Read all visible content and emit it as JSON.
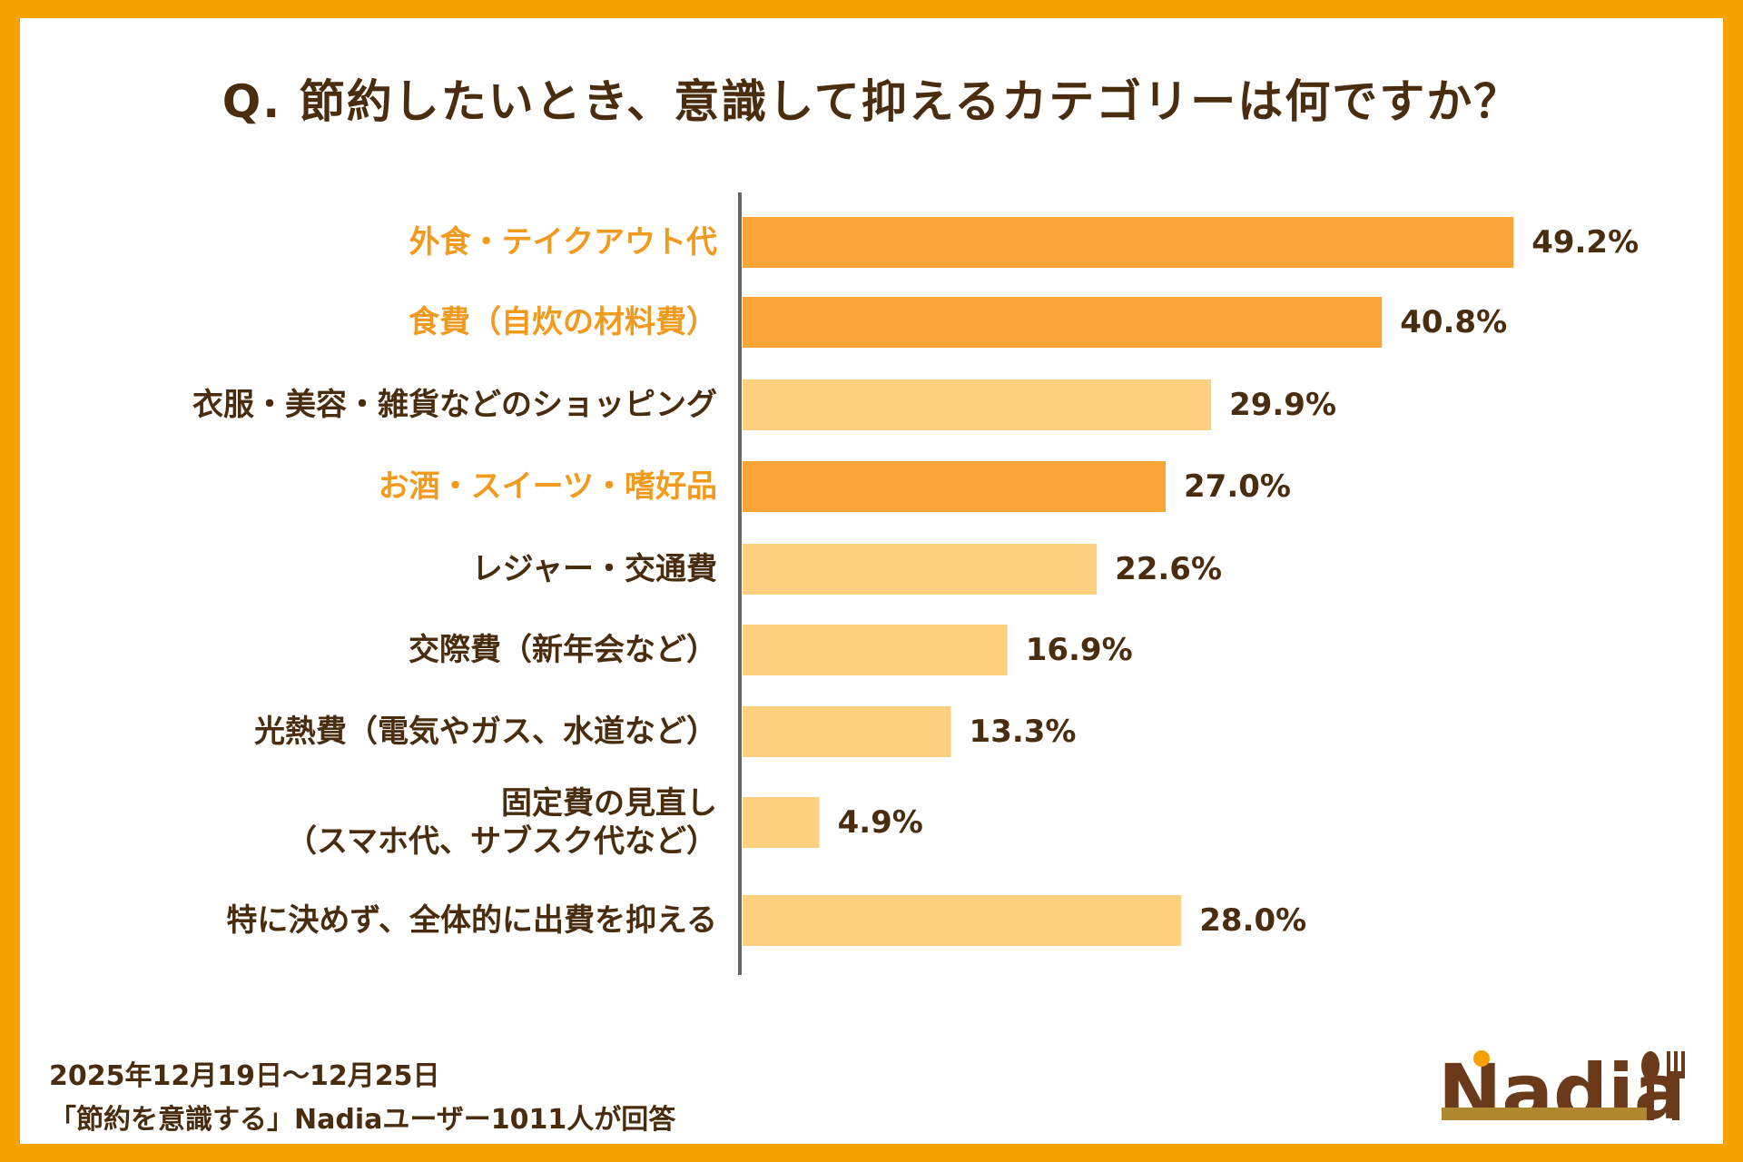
{
  "title": "Q. 節約したいとき、意識して抑えるカテゴリーは何ですか？",
  "chart_data": {
    "type": "bar",
    "orientation": "horizontal",
    "title": "Q. 節約したいとき、意識して抑えるカテゴリーは何ですか？",
    "categories": [
      "外食・テイクアウト代",
      "食費（自炊の材料費）",
      "衣服・美容・雑貨などのショッピング",
      "お酒・スイーツ・嗜好品",
      "レジャー・交通費",
      "交際費（新年会など）",
      "光熱費（電気やガス、水道など）",
      "固定費の見直し\n（スマホ代、サブスク代など）",
      "特に決めず、全体的に出費を抑える"
    ],
    "values": [
      49.2,
      40.8,
      29.9,
      27.0,
      22.6,
      16.9,
      13.3,
      4.9,
      28.0
    ],
    "value_labels": [
      "49.2%",
      "40.8%",
      "29.9%",
      "27.0%",
      "22.6%",
      "16.9%",
      "13.3%",
      "4.9%",
      "28.0%"
    ],
    "highlighted": [
      true,
      true,
      false,
      true,
      false,
      false,
      false,
      false,
      false
    ],
    "unit": "%",
    "grid": false,
    "colors": {
      "highlight_bar": "#F9A53A",
      "normal_bar": "#FCD07E",
      "highlight_label": "#F29A1E",
      "normal_label": "#4A2D0F",
      "axis": "#666666"
    }
  },
  "footer": {
    "period": "2025年12月19日～12月25日",
    "note": "「節約を意識する」Nadiaユーザー1011人が回答"
  },
  "logo": {
    "text": "Nadia"
  },
  "colors": {
    "border": "#F5A100",
    "text": "#4A2D0F"
  }
}
